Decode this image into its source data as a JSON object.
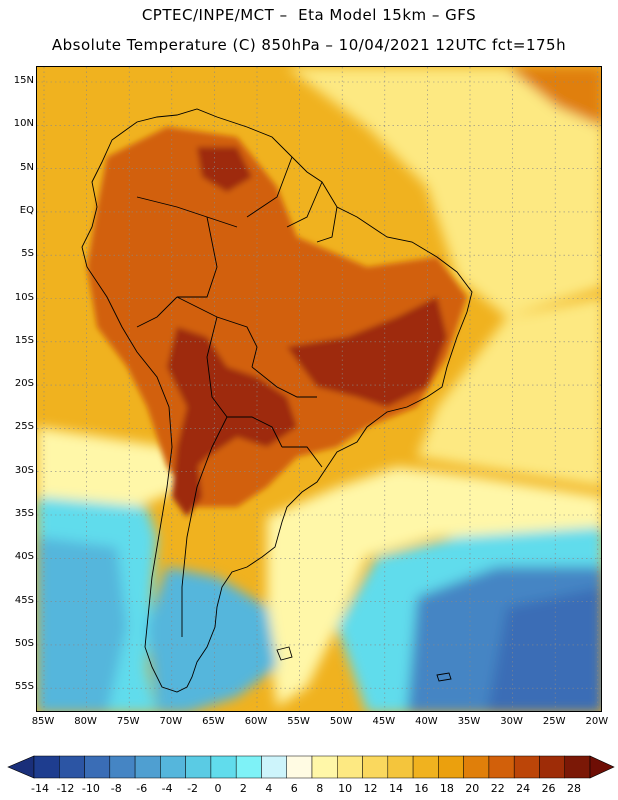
{
  "header": {
    "line1": "CPTEC/INPE/MCT –  Eta Model 15km – GFS",
    "line2": "Absolute Temperature (C) 850hPa – 10/04/2021 12UTC fct=175h"
  },
  "axes": {
    "lat_labels": [
      "15N",
      "10N",
      "5N",
      "EQ",
      "5S",
      "10S",
      "15S",
      "20S",
      "25S",
      "30S",
      "35S",
      "40S",
      "45S",
      "50S",
      "55S"
    ],
    "lon_labels": [
      "85W",
      "80W",
      "75W",
      "70W",
      "65W",
      "60W",
      "55W",
      "50W",
      "45W",
      "40W",
      "35W",
      "30W",
      "25W",
      "20W"
    ]
  },
  "colorbar": {
    "labels": [
      "-14",
      "-12",
      "-10",
      "-8",
      "-6",
      "-4",
      "-2",
      "0",
      "2",
      "4",
      "6",
      "8",
      "10",
      "12",
      "14",
      "16",
      "18",
      "20",
      "22",
      "24",
      "26",
      "28"
    ],
    "colors": [
      "#1e3d8f",
      "#2c55a4",
      "#3a6db6",
      "#4585c4",
      "#4f9fd1",
      "#55b6dc",
      "#5acbe4",
      "#61dcec",
      "#7ef2f7",
      "#cdf4fb",
      "#fffbe3",
      "#fff7a8",
      "#fde982",
      "#fad85e",
      "#f4c53c",
      "#f0b21f",
      "#eba00d",
      "#e07f0a",
      "#d2600a",
      "#bc4508",
      "#9e2c07",
      "#7b1806"
    ],
    "over_color": "#6e0e05",
    "under_color": "#1a2f7a"
  },
  "map_colors": {
    "ocean_warm": "#f0b21f",
    "ocean_hot": "#e07f0a",
    "land_hot": "#d2600a",
    "land_very_hot": "#9e2c07",
    "yellow_band": "#fde982",
    "pale_band": "#fff7a8",
    "cyan": "#61dcec",
    "light_blue": "#55b6dc",
    "mid_blue": "#4585c4",
    "deep_blue": "#3a6db6",
    "grid": "#888888",
    "coast": "#000000"
  }
}
